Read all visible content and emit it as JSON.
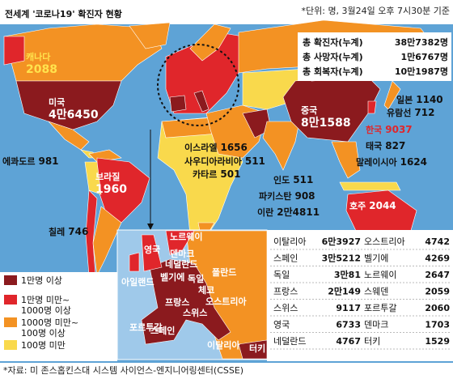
{
  "header": {
    "title": "전세계 '코로나19' 확진자 현황",
    "note": "*단위: 명, 3월24일 오후 7시30분 기준"
  },
  "summary": [
    {
      "label": "총 확진자(누계)",
      "value": "38만7382명"
    },
    {
      "label": "총 사망자(누계)",
      "value": "1만6767명"
    },
    {
      "label": "총 회복자(누계)",
      "value": "10만1987명"
    }
  ],
  "countries": [
    {
      "name": "캐나다",
      "value": "2088"
    },
    {
      "name": "미국",
      "value": "4만6450"
    },
    {
      "name": "에콰도르",
      "value": "981"
    },
    {
      "name": "브라질",
      "value": "1960"
    },
    {
      "name": "칠레",
      "value": "746"
    },
    {
      "name": "이스라엘",
      "value": "1656"
    },
    {
      "name": "사우디아라비아",
      "value": "511"
    },
    {
      "name": "카타르",
      "value": "501"
    },
    {
      "name": "이란",
      "value": "2만4811"
    },
    {
      "name": "파키스탄",
      "value": "908"
    },
    {
      "name": "인도",
      "value": "511"
    },
    {
      "name": "중국",
      "value": "8만1588"
    },
    {
      "name": "일본",
      "value": "1140"
    },
    {
      "name": "유람선",
      "value": "712"
    },
    {
      "name": "한국",
      "value": "9037"
    },
    {
      "name": "태국",
      "value": "827"
    },
    {
      "name": "말레이시아",
      "value": "1624"
    },
    {
      "name": "호주",
      "value": "2044"
    }
  ],
  "legend": [
    {
      "color": "#8b1a1e",
      "lines": [
        "1만명 이상"
      ]
    },
    {
      "color": "#e0262b",
      "lines": [
        "1만명 미만~",
        "1000명 이상"
      ]
    },
    {
      "color": "#f39223",
      "lines": [
        "1000명 미만~",
        "100명 이상"
      ]
    },
    {
      "color": "#f9d94c",
      "lines": [
        "100명 미만"
      ]
    }
  ],
  "europe_map": [
    "노르웨이",
    "영국",
    "덴마크",
    "네덜란드",
    "아일랜드",
    "벨기에",
    "독일",
    "폴란드",
    "체코",
    "프랑스",
    "오스트리아",
    "스위스",
    "포르투갈",
    "스페인",
    "이탈리아",
    "터키"
  ],
  "europe_table": [
    [
      {
        "name": "이탈리아",
        "value": "6만3927"
      },
      {
        "name": "스페인",
        "value": "3만5212"
      },
      {
        "name": "독일",
        "value": "3만81"
      },
      {
        "name": "프랑스",
        "value": "2만149"
      },
      {
        "name": "스위스",
        "value": "9117"
      },
      {
        "name": "영국",
        "value": "6733"
      },
      {
        "name": "네덜란드",
        "value": "4767"
      }
    ],
    [
      {
        "name": "오스트리아",
        "value": "4742"
      },
      {
        "name": "벨기에",
        "value": "4269"
      },
      {
        "name": "노르웨이",
        "value": "2647"
      },
      {
        "name": "스웨덴",
        "value": "2059"
      },
      {
        "name": "포르투갈",
        "value": "2060"
      },
      {
        "name": "덴마크",
        "value": "1703"
      },
      {
        "name": "터키",
        "value": "1529"
      }
    ]
  ],
  "source": "*자료: 미 존스홉킨스대 시스템 사이언스-엔지니어링센터(CSSE)"
}
